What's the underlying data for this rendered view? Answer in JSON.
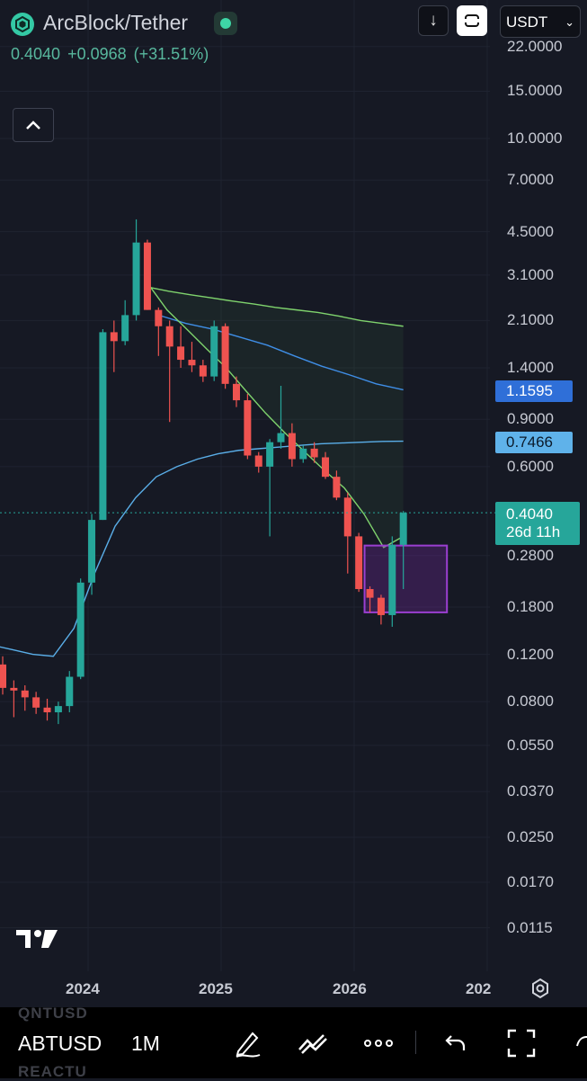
{
  "header": {
    "symbol_title": "ArcBlock/Tether",
    "last_price": "0.4040",
    "change_abs": "+0.0968",
    "change_pct": "(+31.51%)",
    "currency": "USDT"
  },
  "price_axis": {
    "scale": "log",
    "ticks": [
      "22.0000",
      "15.0000",
      "10.0000",
      "7.0000",
      "4.5000",
      "3.1000",
      "2.1000",
      "1.4000",
      "0.9000",
      "0.6000",
      "0.2800",
      "0.1800",
      "0.1200",
      "0.0800",
      "0.0550",
      "0.0370",
      "0.0250",
      "0.0170",
      "0.0115"
    ],
    "tags": {
      "ma_blue": "1.1595",
      "ma_lightblue": "0.7466",
      "current_price": "0.4040",
      "countdown": "26d 11h"
    }
  },
  "time_axis": {
    "labels": [
      "2024",
      "2025",
      "2026",
      "202"
    ]
  },
  "colors": {
    "background": "#161924",
    "up": "#26a69a",
    "down": "#ef5350",
    "ma_green": "#7fd36d",
    "ma_blue": "#3f8ee6",
    "ma_lightblue": "#5aaee8",
    "box": "#9b3fd1"
  },
  "chart_data": {
    "type": "candlestick",
    "interval": "1M",
    "y_scale": "log",
    "ylim": [
      0.0115,
      22.0
    ],
    "candles": [
      {
        "o": 0.11,
        "h": 0.118,
        "l": 0.085,
        "c": 0.09
      },
      {
        "o": 0.09,
        "h": 0.096,
        "l": 0.07,
        "c": 0.088
      },
      {
        "o": 0.088,
        "h": 0.092,
        "l": 0.074,
        "c": 0.083
      },
      {
        "o": 0.083,
        "h": 0.087,
        "l": 0.072,
        "c": 0.076
      },
      {
        "o": 0.076,
        "h": 0.082,
        "l": 0.068,
        "c": 0.073
      },
      {
        "o": 0.073,
        "h": 0.08,
        "l": 0.066,
        "c": 0.077
      },
      {
        "o": 0.077,
        "h": 0.104,
        "l": 0.073,
        "c": 0.099
      },
      {
        "o": 0.099,
        "h": 0.23,
        "l": 0.097,
        "c": 0.222
      },
      {
        "o": 0.222,
        "h": 0.4,
        "l": 0.2,
        "c": 0.38
      },
      {
        "o": 0.38,
        "h": 1.95,
        "l": 0.38,
        "c": 1.9
      },
      {
        "o": 1.9,
        "h": 2.1,
        "l": 1.35,
        "c": 1.76
      },
      {
        "o": 1.76,
        "h": 2.5,
        "l": 1.7,
        "c": 2.2
      },
      {
        "o": 2.2,
        "h": 5.0,
        "l": 2.1,
        "c": 4.1
      },
      {
        "o": 4.1,
        "h": 4.2,
        "l": 2.3,
        "c": 2.3
      },
      {
        "o": 2.3,
        "h": 2.35,
        "l": 1.55,
        "c": 2.0
      },
      {
        "o": 2.0,
        "h": 2.1,
        "l": 0.88,
        "c": 1.68
      },
      {
        "o": 1.68,
        "h": 2.0,
        "l": 1.4,
        "c": 1.5
      },
      {
        "o": 1.5,
        "h": 1.75,
        "l": 1.35,
        "c": 1.43
      },
      {
        "o": 1.43,
        "h": 1.5,
        "l": 1.24,
        "c": 1.3
      },
      {
        "o": 1.3,
        "h": 2.1,
        "l": 1.25,
        "c": 2.0
      },
      {
        "o": 2.0,
        "h": 2.05,
        "l": 1.17,
        "c": 1.22
      },
      {
        "o": 1.22,
        "h": 1.3,
        "l": 1.0,
        "c": 1.06
      },
      {
        "o": 1.06,
        "h": 1.12,
        "l": 0.64,
        "c": 0.66
      },
      {
        "o": 0.66,
        "h": 0.68,
        "l": 0.57,
        "c": 0.6
      },
      {
        "o": 0.6,
        "h": 0.76,
        "l": 0.33,
        "c": 0.74
      },
      {
        "o": 0.74,
        "h": 1.2,
        "l": 0.7,
        "c": 0.8
      },
      {
        "o": 0.8,
        "h": 0.87,
        "l": 0.6,
        "c": 0.64
      },
      {
        "o": 0.64,
        "h": 0.72,
        "l": 0.62,
        "c": 0.7
      },
      {
        "o": 0.7,
        "h": 0.74,
        "l": 0.62,
        "c": 0.65
      },
      {
        "o": 0.65,
        "h": 0.68,
        "l": 0.54,
        "c": 0.55
      },
      {
        "o": 0.55,
        "h": 0.58,
        "l": 0.45,
        "c": 0.46
      },
      {
        "o": 0.46,
        "h": 0.48,
        "l": 0.24,
        "c": 0.33
      },
      {
        "o": 0.33,
        "h": 0.34,
        "l": 0.205,
        "c": 0.21
      },
      {
        "o": 0.21,
        "h": 0.215,
        "l": 0.172,
        "c": 0.195
      },
      {
        "o": 0.195,
        "h": 0.2,
        "l": 0.155,
        "c": 0.168
      },
      {
        "o": 0.168,
        "h": 0.33,
        "l": 0.152,
        "c": 0.307
      },
      {
        "o": 0.307,
        "h": 0.41,
        "l": 0.21,
        "c": 0.404
      }
    ],
    "ma_green": [
      2.8,
      2.7,
      2.62,
      2.55,
      2.48,
      2.42,
      2.35,
      2.3,
      2.25,
      2.18,
      2.1,
      2.05,
      2.0
    ],
    "ma_green_lower": [
      2.9,
      2.3,
      1.95,
      1.65,
      1.4,
      1.15,
      0.95,
      0.8,
      0.68,
      0.58,
      0.5,
      0.4,
      0.3,
      0.33
    ],
    "ma_blue": [
      0.13,
      0.125,
      0.12,
      0.118,
      0.15,
      0.24,
      0.36,
      0.46,
      0.55,
      0.6,
      0.64,
      0.67,
      0.69,
      0.7,
      0.71,
      0.72,
      0.73,
      0.735,
      0.74,
      0.745,
      0.7466
    ],
    "ma_blue_upper": [
      2.2,
      2.05,
      1.95,
      1.82,
      1.7,
      1.55,
      1.42,
      1.32,
      1.22,
      1.1595
    ],
    "zone_box": {
      "from_index": 33,
      "to_index": 40,
      "high": 0.305,
      "low": 0.172
    },
    "last_price": 0.404
  },
  "toolbar": {
    "symbol": "ABTUSD",
    "interval": "1M",
    "ghost_above": "QNTUSD",
    "ghost_below": "REACTU"
  }
}
